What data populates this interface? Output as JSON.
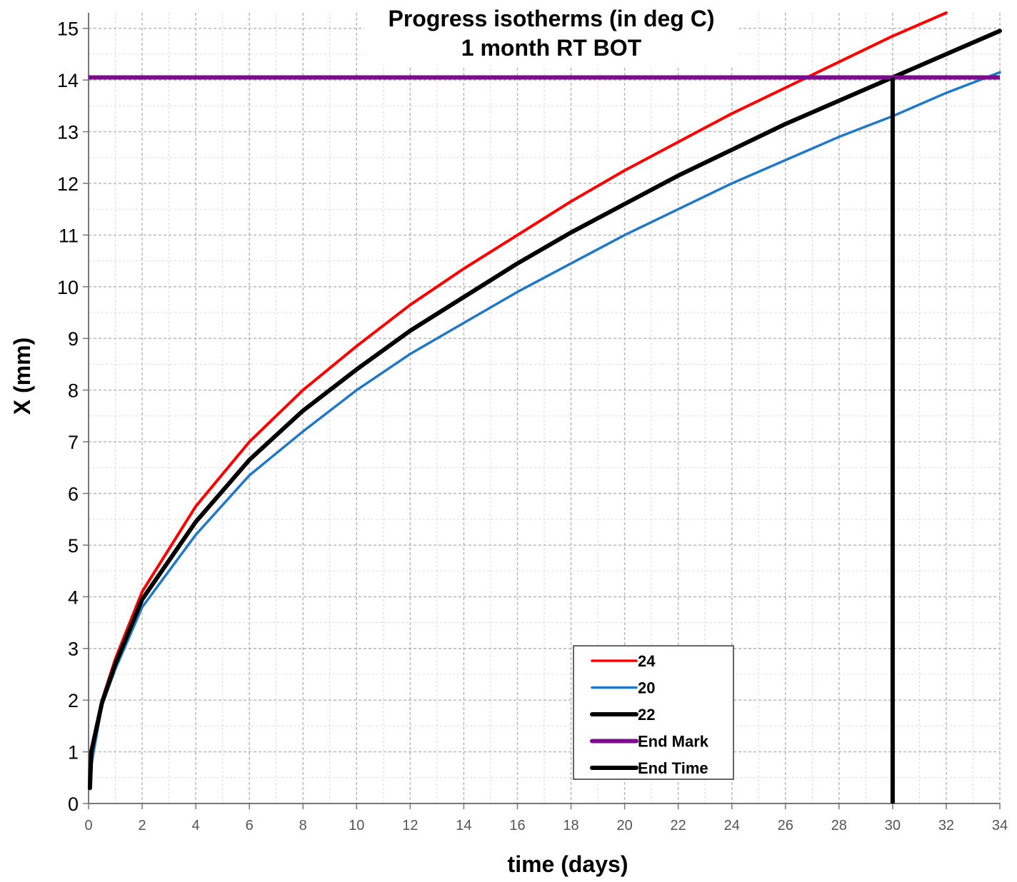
{
  "chart_data": {
    "type": "line",
    "title": "Progress isotherms (in deg C)",
    "subtitle": "1 month RT BOT",
    "xlabel": "time (days)",
    "ylabel": "X (mm)",
    "xlim": [
      0,
      34
    ],
    "ylim": [
      0,
      15.3
    ],
    "x_ticks": [
      "0",
      "2",
      "4",
      "6",
      "8",
      "10",
      "12",
      "14",
      "16",
      "18",
      "20",
      "22",
      "24",
      "26",
      "28",
      "30",
      "32",
      "34"
    ],
    "y_ticks": [
      "0",
      "1",
      "2",
      "3",
      "4",
      "5",
      "6",
      "7",
      "8",
      "9",
      "10",
      "11",
      "12",
      "13",
      "14",
      "15"
    ],
    "grid": true,
    "legend_position": "bottom-center",
    "series": [
      {
        "name": "24",
        "color": "#ff0000",
        "points": [
          [
            0.05,
            0.6
          ],
          [
            0.5,
            2.0
          ],
          [
            1,
            2.8
          ],
          [
            2,
            4.1
          ],
          [
            4,
            5.75
          ],
          [
            6,
            7.0
          ],
          [
            8,
            8.0
          ],
          [
            10,
            8.85
          ],
          [
            12,
            9.65
          ],
          [
            14,
            10.35
          ],
          [
            16,
            11.0
          ],
          [
            18,
            11.65
          ],
          [
            20,
            12.25
          ],
          [
            22,
            12.8
          ],
          [
            24,
            13.35
          ],
          [
            26,
            13.85
          ],
          [
            28,
            14.35
          ],
          [
            30,
            14.85
          ],
          [
            32,
            15.3
          ]
        ]
      },
      {
        "name": "20",
        "color": "#1f78c8",
        "points": [
          [
            0.05,
            0.6
          ],
          [
            0.5,
            1.9
          ],
          [
            1,
            2.6
          ],
          [
            2,
            3.8
          ],
          [
            4,
            5.2
          ],
          [
            6,
            6.35
          ],
          [
            8,
            7.2
          ],
          [
            10,
            8.0
          ],
          [
            12,
            8.7
          ],
          [
            14,
            9.3
          ],
          [
            16,
            9.9
          ],
          [
            18,
            10.45
          ],
          [
            20,
            11.0
          ],
          [
            22,
            11.5
          ],
          [
            24,
            12.0
          ],
          [
            26,
            12.45
          ],
          [
            28,
            12.9
          ],
          [
            30,
            13.3
          ],
          [
            32,
            13.75
          ],
          [
            34,
            14.15
          ]
        ]
      },
      {
        "name": "22",
        "color": "#000000",
        "points": [
          [
            0.05,
            0.3
          ],
          [
            0.1,
            1.0
          ],
          [
            0.5,
            1.95
          ],
          [
            1,
            2.7
          ],
          [
            2,
            3.95
          ],
          [
            4,
            5.45
          ],
          [
            6,
            6.65
          ],
          [
            8,
            7.6
          ],
          [
            10,
            8.4
          ],
          [
            12,
            9.15
          ],
          [
            14,
            9.8
          ],
          [
            16,
            10.45
          ],
          [
            18,
            11.05
          ],
          [
            20,
            11.6
          ],
          [
            22,
            12.15
          ],
          [
            24,
            12.65
          ],
          [
            26,
            13.15
          ],
          [
            28,
            13.6
          ],
          [
            30,
            14.05
          ],
          [
            32,
            14.5
          ],
          [
            34,
            14.95
          ]
        ]
      },
      {
        "name": "End Mark",
        "color": "#7b0c8c",
        "points": [
          [
            0,
            14.05
          ],
          [
            34,
            14.05
          ]
        ]
      },
      {
        "name": "End Time",
        "color": "#000000",
        "points": [
          [
            30,
            0
          ],
          [
            30,
            14.05
          ]
        ]
      }
    ]
  }
}
